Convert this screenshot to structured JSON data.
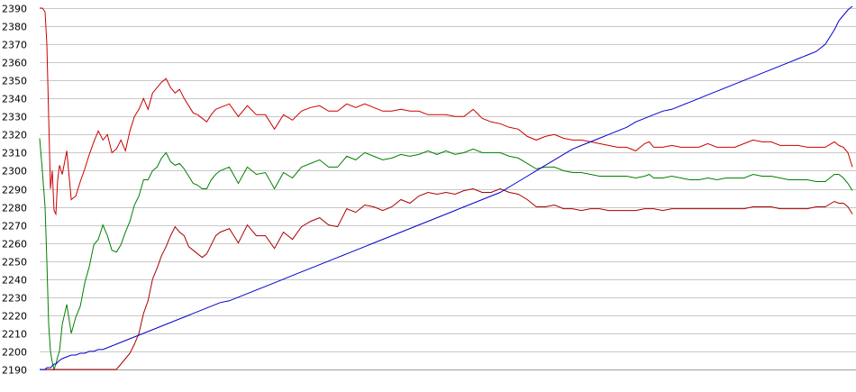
{
  "chart_data": {
    "type": "line",
    "title": "",
    "xlabel": "",
    "ylabel": "",
    "ylim": [
      2190,
      2390
    ],
    "yticks": [
      2190,
      2200,
      2210,
      2220,
      2230,
      2240,
      2250,
      2260,
      2270,
      2280,
      2290,
      2300,
      2310,
      2320,
      2330,
      2340,
      2350,
      2360,
      2370,
      2380,
      2390
    ],
    "grid": true,
    "legend": "none",
    "x": [
      0,
      3,
      6,
      8,
      10,
      12,
      14,
      16,
      18,
      20,
      22,
      25,
      30,
      35,
      40,
      45,
      50,
      55,
      60,
      65,
      70,
      75,
      80,
      85,
      90,
      95,
      100,
      105,
      110,
      115,
      120,
      125,
      130,
      135,
      140,
      145,
      150,
      155,
      160,
      165,
      170,
      175,
      180,
      185,
      190,
      195,
      200,
      210,
      220,
      230,
      240,
      250,
      260,
      270,
      280,
      290,
      300,
      310,
      320,
      330,
      340,
      350,
      360,
      370,
      380,
      390,
      400,
      410,
      420,
      430,
      440,
      450,
      460,
      470,
      480,
      490,
      500,
      510,
      520,
      530,
      540,
      550,
      560,
      570,
      580,
      590,
      600,
      610,
      620,
      630,
      640,
      650,
      660,
      670,
      675,
      680,
      690,
      700,
      710,
      720,
      730,
      740,
      750,
      760,
      770,
      780,
      790,
      800,
      810,
      820,
      830,
      840,
      850,
      860,
      870,
      880,
      885,
      890,
      895,
      900
    ],
    "series": [
      {
        "color": "#cc0000",
        "values": [
          2390,
          2390,
          2388,
          2370,
          2330,
          2290,
          2300,
          2278,
          2276,
          2295,
          2303,
          2298,
          2311,
          2284,
          2286,
          2294,
          2301,
          2309,
          2316,
          2322,
          2317,
          2320,
          2310,
          2312,
          2317,
          2311,
          2322,
          2330,
          2334,
          2340,
          2334,
          2343,
          2346,
          2349,
          2351,
          2346,
          2343,
          2345,
          2340,
          2336,
          2332,
          2331,
          2329,
          2327,
          2331,
          2334,
          2335,
          2337,
          2330,
          2336,
          2331,
          2331,
          2323,
          2331,
          2328,
          2333,
          2335,
          2336,
          2333,
          2333,
          2337,
          2335,
          2337,
          2335,
          2333,
          2333,
          2334,
          2333,
          2333,
          2331,
          2331,
          2331,
          2330,
          2330,
          2334,
          2329,
          2327,
          2326,
          2324,
          2323,
          2319,
          2317,
          2319,
          2320,
          2318,
          2317,
          2317,
          2316,
          2315,
          2314,
          2313,
          2313,
          2311,
          2315,
          2316,
          2313,
          2313,
          2314,
          2313,
          2313,
          2313,
          2315,
          2313,
          2313,
          2313,
          2315,
          2317,
          2316,
          2316,
          2314,
          2314,
          2314,
          2313,
          2313,
          2313,
          2316,
          2314,
          2313,
          2310,
          2302
        ]
      },
      {
        "color": "#008000",
        "values": [
          2318,
          2300,
          2280,
          2250,
          2215,
          2200,
          2194,
          2190,
          2193,
          2197,
          2200,
          2215,
          2226,
          2210,
          2219,
          2225,
          2238,
          2247,
          2259,
          2262,
          2270,
          2264,
          2256,
          2255,
          2259,
          2266,
          2272,
          2281,
          2286,
          2295,
          2295,
          2300,
          2302,
          2307,
          2310,
          2305,
          2303,
          2304,
          2301,
          2297,
          2293,
          2292,
          2290,
          2290,
          2295,
          2298,
          2300,
          2302,
          2293,
          2302,
          2298,
          2299,
          2290,
          2299,
          2296,
          2302,
          2304,
          2306,
          2302,
          2302,
          2308,
          2306,
          2310,
          2308,
          2306,
          2307,
          2309,
          2308,
          2309,
          2311,
          2309,
          2311,
          2309,
          2310,
          2312,
          2310,
          2310,
          2310,
          2308,
          2307,
          2304,
          2301,
          2302,
          2302,
          2300,
          2299,
          2299,
          2298,
          2297,
          2297,
          2297,
          2297,
          2296,
          2297,
          2298,
          2296,
          2296,
          2297,
          2296,
          2295,
          2295,
          2296,
          2295,
          2296,
          2296,
          2296,
          2298,
          2297,
          2297,
          2296,
          2295,
          2295,
          2295,
          2294,
          2294,
          2298,
          2298,
          2296,
          2293,
          2289
        ]
      },
      {
        "color": "#aa0000",
        "values": [
          2190,
          2190,
          2190,
          2190,
          2190,
          2190,
          2190,
          2190,
          2190,
          2190,
          2190,
          2190,
          2190,
          2190,
          2190,
          2190,
          2190,
          2190,
          2190,
          2190,
          2190,
          2190,
          2190,
          2190,
          2193,
          2196,
          2199,
          2204,
          2210,
          2221,
          2228,
          2240,
          2246,
          2253,
          2258,
          2264,
          2269,
          2266,
          2264,
          2258,
          2256,
          2254,
          2252,
          2254,
          2259,
          2264,
          2266,
          2268,
          2260,
          2270,
          2264,
          2264,
          2257,
          2266,
          2262,
          2269,
          2272,
          2274,
          2270,
          2269,
          2279,
          2277,
          2281,
          2280,
          2278,
          2280,
          2284,
          2282,
          2286,
          2288,
          2287,
          2288,
          2287,
          2289,
          2290,
          2288,
          2288,
          2290,
          2288,
          2287,
          2284,
          2280,
          2280,
          2281,
          2279,
          2279,
          2278,
          2279,
          2279,
          2278,
          2278,
          2278,
          2278,
          2279,
          2279,
          2279,
          2278,
          2279,
          2279,
          2279,
          2279,
          2279,
          2279,
          2279,
          2279,
          2279,
          2280,
          2280,
          2280,
          2279,
          2279,
          2279,
          2279,
          2280,
          2280,
          2283,
          2282,
          2282,
          2280,
          2276
        ]
      },
      {
        "color": "#0000cc",
        "values": [
          2190,
          2190,
          2190,
          2191,
          2191,
          2191,
          2192,
          2193,
          2193,
          2194,
          2195,
          2196,
          2197,
          2198,
          2198,
          2199,
          2199,
          2200,
          2200,
          2201,
          2201,
          2202,
          2203,
          2204,
          2205,
          2206,
          2207,
          2208,
          2209,
          2210,
          2211,
          2212,
          2213,
          2214,
          2215,
          2216,
          2217,
          2218,
          2219,
          2220,
          2221,
          2222,
          2223,
          2224,
          2225,
          2226,
          2227,
          2228,
          2230,
          2232,
          2234,
          2236,
          2238,
          2240,
          2242,
          2244,
          2246,
          2248,
          2250,
          2252,
          2254,
          2256,
          2258,
          2260,
          2262,
          2264,
          2266,
          2268,
          2270,
          2272,
          2274,
          2276,
          2278,
          2280,
          2282,
          2284,
          2286,
          2288,
          2291,
          2294,
          2297,
          2300,
          2303,
          2306,
          2309,
          2312,
          2314,
          2316,
          2318,
          2320,
          2322,
          2324,
          2327,
          2329,
          2330,
          2331,
          2333,
          2334,
          2336,
          2338,
          2340,
          2342,
          2344,
          2346,
          2348,
          2350,
          2352,
          2354,
          2356,
          2358,
          2360,
          2362,
          2364,
          2366,
          2370,
          2378,
          2383,
          2386,
          2389,
          2391
        ]
      }
    ]
  }
}
